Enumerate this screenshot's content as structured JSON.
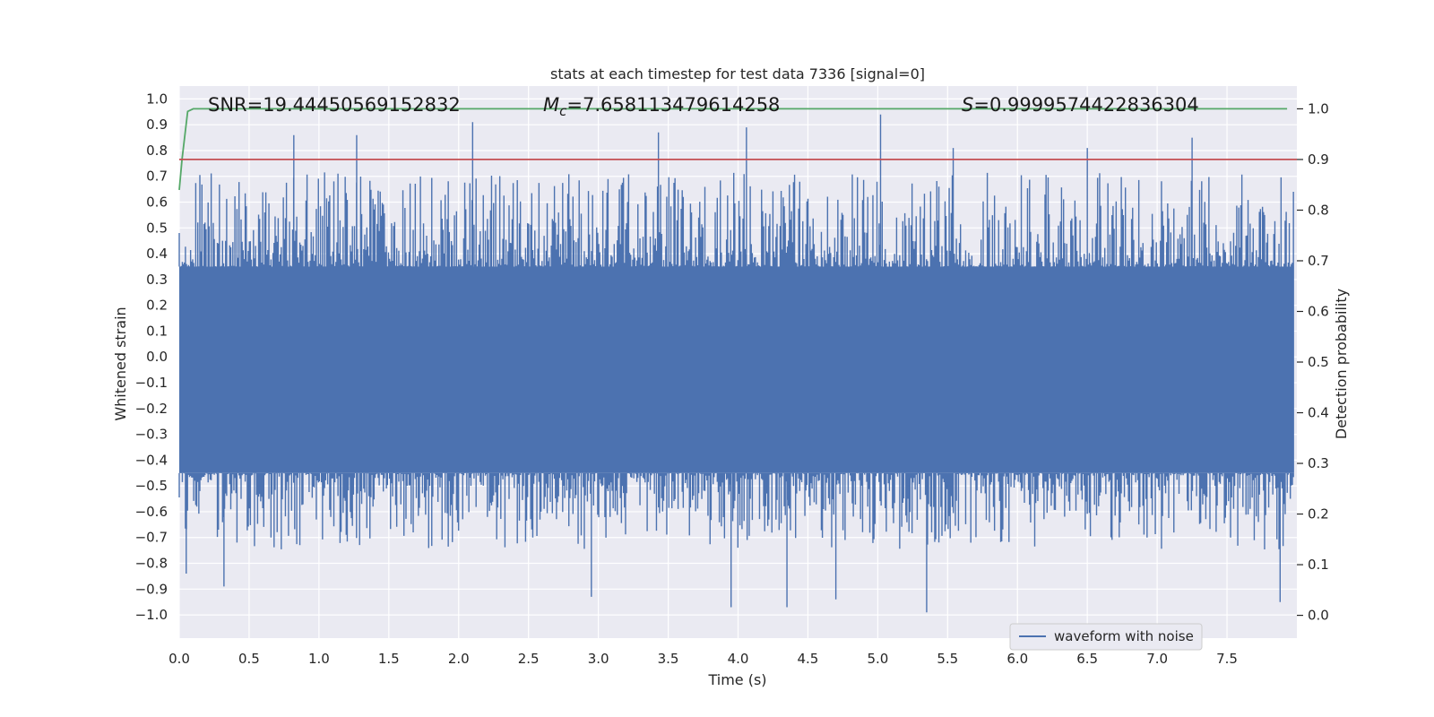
{
  "chart_data": {
    "type": "line",
    "title": "stats at each timestep for test data 7336 [signal=0]",
    "xlabel": "Time (s)",
    "ylabel": "Whitened strain",
    "y2label": "Detection probability",
    "xlim": [
      0.0,
      8.0
    ],
    "ylim": [
      -1.09,
      1.05
    ],
    "y2lim": [
      -0.045,
      1.045
    ],
    "xticks": [
      0.0,
      0.5,
      1.0,
      1.5,
      2.0,
      2.5,
      3.0,
      3.5,
      4.0,
      4.5,
      5.0,
      5.5,
      6.0,
      6.5,
      7.0,
      7.5
    ],
    "xtick_labels": [
      "0.0",
      "0.5",
      "1.0",
      "1.5",
      "2.0",
      "2.5",
      "3.0",
      "3.5",
      "4.0",
      "4.5",
      "5.0",
      "5.5",
      "6.0",
      "6.5",
      "7.0",
      "7.5"
    ],
    "yticks": [
      1.0,
      0.9,
      0.8,
      0.7,
      0.6,
      0.5,
      0.4,
      0.3,
      0.2,
      0.1,
      0.0,
      -0.1,
      -0.2,
      -0.3,
      -0.4,
      -0.5,
      -0.6,
      -0.7,
      -0.8,
      -0.9,
      -1.0
    ],
    "ytick_labels": [
      "1.0",
      "0.9",
      "0.8",
      "0.7",
      "0.6",
      "0.5",
      "0.4",
      "0.3",
      "0.2",
      "0.1",
      "0.0",
      "−0.1",
      "−0.2",
      "−0.3",
      "−0.4",
      "−0.5",
      "−0.6",
      "−0.7",
      "−0.8",
      "−0.9",
      "−1.0"
    ],
    "y2ticks": [
      1.0,
      0.9,
      0.8,
      0.7,
      0.6,
      0.5,
      0.4,
      0.3,
      0.2,
      0.1,
      0.0
    ],
    "y2tick_labels": [
      "1.0",
      "0.9",
      "0.8",
      "0.7",
      "0.6",
      "0.5",
      "0.4",
      "0.3",
      "0.2",
      "0.1",
      "0.0"
    ],
    "annotations": {
      "snr": "SNR=19.44450569152832",
      "mc_symbol": "M",
      "mc_sub": "c",
      "mc_value": "=7.658113479614258",
      "s_symbol": "S",
      "s_value": "=0.9999574422836304"
    },
    "legend": {
      "label": "waveform with noise",
      "loc": "lower-right"
    },
    "series": [
      {
        "name": "waveform with noise",
        "axis": "left",
        "color": "#4c72b0",
        "kind": "noise",
        "t_range": [
          0.0,
          7.98
        ],
        "typical_upper": 0.35,
        "typical_lower": -0.45,
        "extreme_upper": 0.94,
        "extreme_lower": -0.99,
        "peaks_upper": [
          [
            0.82,
            0.86
          ],
          [
            1.27,
            0.86
          ],
          [
            2.1,
            0.91
          ],
          [
            3.43,
            0.87
          ],
          [
            4.06,
            0.89
          ],
          [
            5.02,
            0.94
          ],
          [
            5.54,
            0.81
          ],
          [
            6.5,
            0.81
          ],
          [
            7.25,
            0.85
          ]
        ],
        "troughs_lower": [
          [
            0.05,
            -0.84
          ],
          [
            0.32,
            -0.89
          ],
          [
            2.95,
            -0.93
          ],
          [
            3.95,
            -0.97
          ],
          [
            4.35,
            -0.97
          ],
          [
            4.7,
            -0.94
          ],
          [
            5.35,
            -0.99
          ],
          [
            7.88,
            -0.95
          ]
        ]
      },
      {
        "name": "detection probability",
        "axis": "right",
        "color": "#55a868",
        "points": [
          [
            0.0,
            0.84
          ],
          [
            0.02,
            0.9
          ],
          [
            0.06,
            0.995
          ],
          [
            0.1,
            1.0
          ],
          [
            7.93,
            1.0
          ]
        ]
      },
      {
        "name": "threshold",
        "axis": "right",
        "color": "#c44e52",
        "points": [
          [
            0.0,
            0.9
          ],
          [
            8.0,
            0.9
          ]
        ]
      }
    ]
  }
}
